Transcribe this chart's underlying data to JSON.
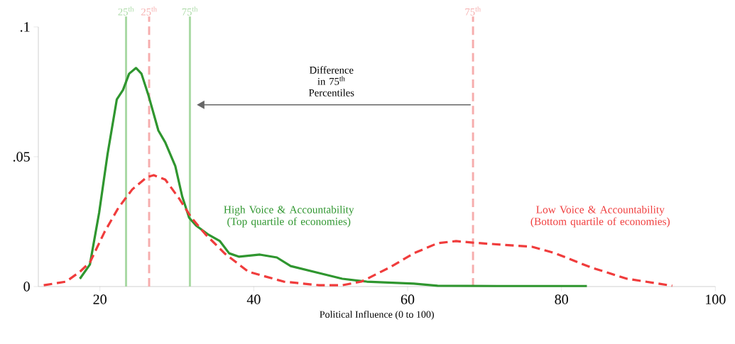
{
  "chart_data": {
    "type": "line",
    "xlabel": "Political Influence (0 to 100)",
    "xlim": [
      12,
      100
    ],
    "xticks": [
      20,
      40,
      60,
      80,
      100
    ],
    "ylim": [
      0,
      0.1
    ],
    "yticks": [
      {
        "value": 0,
        "label": "0"
      },
      {
        "value": 0.05,
        "label": ".05"
      },
      {
        "value": 0.1,
        "label": ".1"
      }
    ],
    "grid": false,
    "marker": "none",
    "series": [
      {
        "name": "High Voice & Accountability (Top quartile of economies)",
        "color": "#2f962f",
        "line_style": "solid",
        "x": [
          17.4,
          18.7,
          19.9,
          21.0,
          22.2,
          23.0,
          23.8,
          24.7,
          25.4,
          26.3,
          27.6,
          28.5,
          29.8,
          30.7,
          31.6,
          32.5,
          34.0,
          35.6,
          36.8,
          38.1,
          40.8,
          43.0,
          44.8,
          48.5,
          51.5,
          54.7,
          60.8,
          63.9,
          71.6,
          83.3
        ],
        "values": [
          0.003,
          0.0085,
          0.0284,
          0.0511,
          0.0721,
          0.0757,
          0.082,
          0.0842,
          0.082,
          0.0738,
          0.0601,
          0.0555,
          0.0464,
          0.0347,
          0.0265,
          0.0235,
          0.0202,
          0.0175,
          0.0128,
          0.0115,
          0.0123,
          0.0112,
          0.0079,
          0.0052,
          0.003,
          0.0019,
          0.0011,
          0.0003,
          0.0002,
          0.0002
        ]
      },
      {
        "name": "Low Voice & Accountability (Bottom quartile of economies)",
        "color": "#f03c3c",
        "line_style": "dashed",
        "x": [
          12.7,
          15.6,
          17.4,
          18.7,
          20.6,
          22.4,
          24.2,
          26.1,
          27.0,
          28.5,
          30.3,
          31.9,
          33.7,
          36.2,
          39.3,
          43.9,
          48.5,
          51.5,
          54.0,
          57.7,
          60.8,
          63.9,
          66.3,
          68.5,
          76.2,
          79.2,
          83.8,
          88.5,
          94.4
        ],
        "values": [
          0.0005,
          0.0019,
          0.0057,
          0.0093,
          0.021,
          0.0303,
          0.0374,
          0.0421,
          0.0429,
          0.0412,
          0.0339,
          0.0265,
          0.0202,
          0.0128,
          0.0057,
          0.0019,
          0.0005,
          0.0005,
          0.0019,
          0.0074,
          0.0128,
          0.0167,
          0.0175,
          0.0169,
          0.0153,
          0.0128,
          0.0074,
          0.003,
          0.0003
        ]
      }
    ],
    "ref_lines": [
      {
        "axis": "x",
        "value": 23.4,
        "label": "25$^{th}$",
        "color": "#a9d9a4",
        "line_style": "solid"
      },
      {
        "axis": "x",
        "value": 31.7,
        "label": "75$^{th}$",
        "color": "#a9d9a4",
        "line_style": "solid"
      },
      {
        "axis": "x",
        "value": 26.4,
        "label": "25$^{th}$",
        "color": "#f6adad",
        "line_style": "dashed"
      },
      {
        "axis": "x",
        "value": 68.5,
        "label": "75$^{th}$",
        "color": "#f6adad",
        "line_style": "dashed"
      }
    ],
    "annotations": [
      "Difference in 75$^{th}$ Percentiles"
    ]
  }
}
